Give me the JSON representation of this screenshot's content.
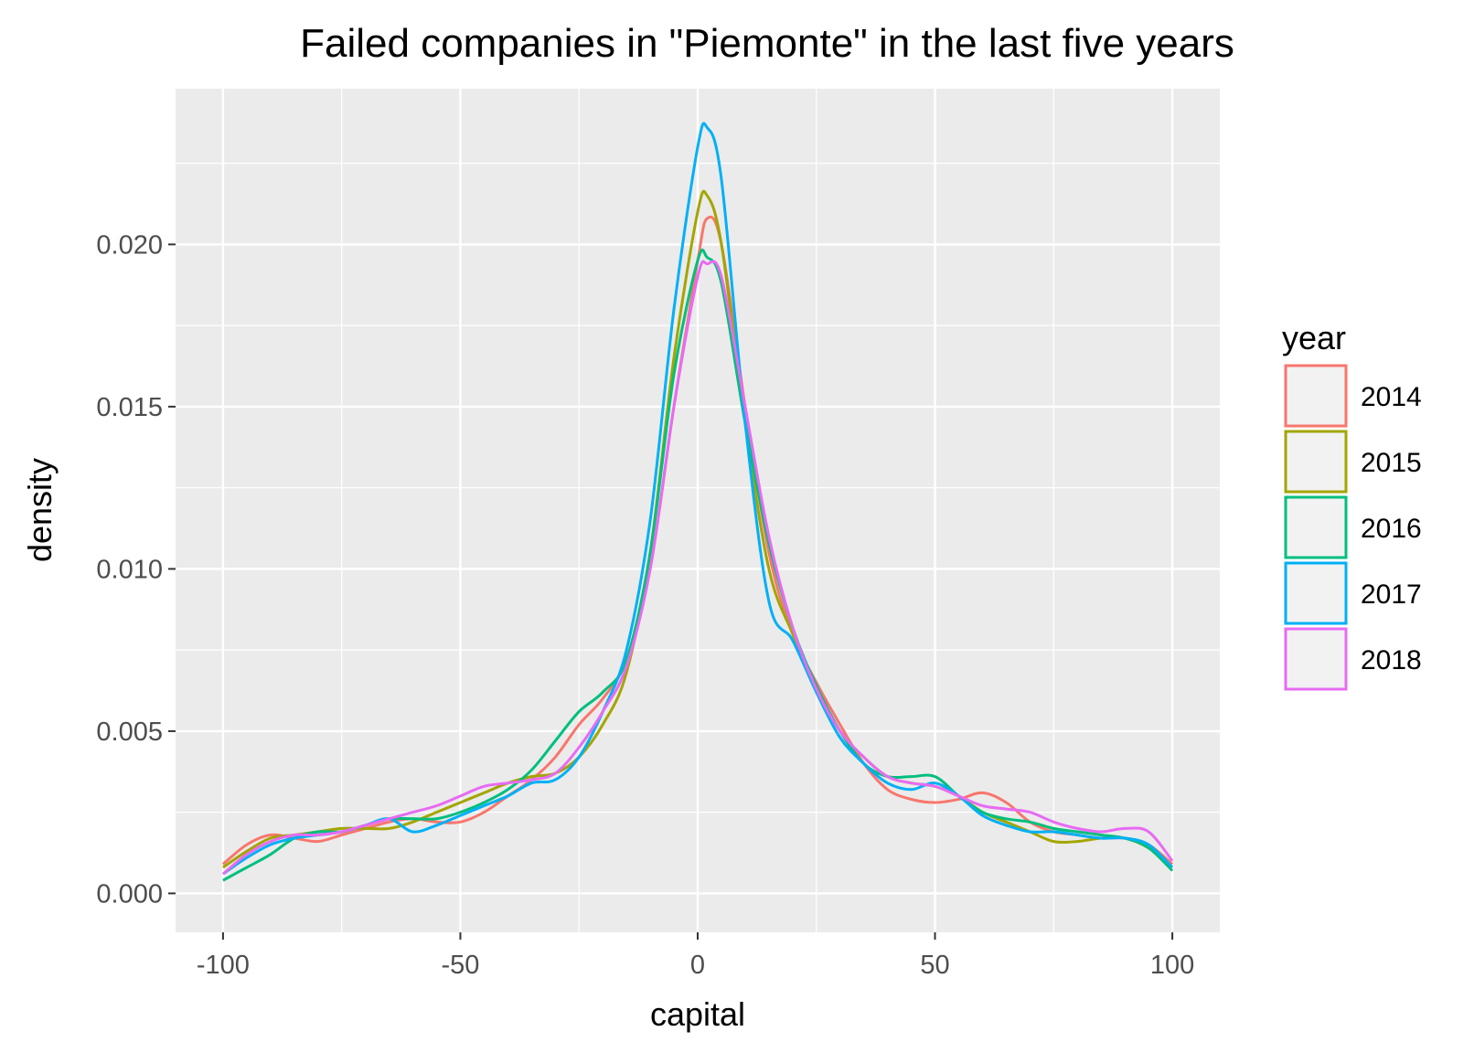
{
  "chart_data": {
    "type": "line",
    "title": "Failed companies in \"Piemonte\" in the last five years",
    "xlabel": "capital",
    "ylabel": "density",
    "xlim": [
      -110,
      110
    ],
    "ylim": [
      -0.0012,
      0.0248
    ],
    "x_ticks": [
      -100,
      -50,
      0,
      50,
      100
    ],
    "x_tick_labels": [
      "-100",
      "-50",
      "0",
      "50",
      "100"
    ],
    "y_ticks": [
      0.0,
      0.005,
      0.01,
      0.015,
      0.02
    ],
    "y_tick_labels": [
      "0.000",
      "0.005",
      "0.010",
      "0.015",
      "0.020"
    ],
    "grid": true,
    "background": "#ebebeb",
    "legend": {
      "title": "year",
      "placement": "right"
    },
    "x": [
      -100,
      -95,
      -90,
      -85,
      -80,
      -75,
      -70,
      -65,
      -60,
      -55,
      -50,
      -45,
      -40,
      -35,
      -30,
      -25,
      -20,
      -15,
      -10,
      -5,
      0,
      2,
      5,
      10,
      15,
      20,
      25,
      30,
      35,
      40,
      45,
      50,
      55,
      60,
      65,
      70,
      75,
      80,
      85,
      90,
      95,
      100
    ],
    "series": [
      {
        "name": "2014",
        "color": "#F8766D",
        "values": [
          0.0009,
          0.0015,
          0.0018,
          0.0017,
          0.0016,
          0.0018,
          0.002,
          0.0022,
          0.0023,
          0.0022,
          0.0022,
          0.0025,
          0.003,
          0.0035,
          0.0042,
          0.0052,
          0.006,
          0.0072,
          0.01,
          0.015,
          0.0195,
          0.0208,
          0.02,
          0.015,
          0.0105,
          0.008,
          0.0065,
          0.0052,
          0.004,
          0.0032,
          0.0029,
          0.0028,
          0.0029,
          0.0031,
          0.0028,
          0.0022,
          0.0019,
          0.0018,
          0.0017,
          0.0017,
          0.0015,
          0.0009
        ]
      },
      {
        "name": "2015",
        "color": "#A3A500",
        "values": [
          0.0008,
          0.0013,
          0.0017,
          0.0018,
          0.0019,
          0.002,
          0.002,
          0.002,
          0.0022,
          0.0025,
          0.0028,
          0.0031,
          0.0034,
          0.0036,
          0.0037,
          0.0042,
          0.0052,
          0.0068,
          0.0105,
          0.0165,
          0.021,
          0.0215,
          0.02,
          0.0145,
          0.01,
          0.008,
          0.0063,
          0.005,
          0.0042,
          0.0036,
          0.0034,
          0.0033,
          0.003,
          0.0025,
          0.0022,
          0.0019,
          0.0016,
          0.0016,
          0.0017,
          0.0017,
          0.0014,
          0.0008
        ]
      },
      {
        "name": "2016",
        "color": "#00BF7D",
        "values": [
          0.0004,
          0.0008,
          0.0012,
          0.0017,
          0.0019,
          0.0019,
          0.0021,
          0.0023,
          0.0023,
          0.0023,
          0.0025,
          0.0028,
          0.0032,
          0.0038,
          0.0047,
          0.0056,
          0.0062,
          0.0072,
          0.0105,
          0.016,
          0.0195,
          0.0196,
          0.0188,
          0.0145,
          0.0108,
          0.0082,
          0.0064,
          0.005,
          0.004,
          0.0036,
          0.0036,
          0.0036,
          0.003,
          0.0025,
          0.0023,
          0.0022,
          0.002,
          0.0019,
          0.0018,
          0.0017,
          0.0014,
          0.0007
        ]
      },
      {
        "name": "2017",
        "color": "#00B0F6",
        "values": [
          0.0006,
          0.0011,
          0.0015,
          0.0017,
          0.0018,
          0.0019,
          0.0021,
          0.0023,
          0.0019,
          0.0021,
          0.0024,
          0.0027,
          0.003,
          0.0034,
          0.0035,
          0.0042,
          0.0056,
          0.0075,
          0.0115,
          0.018,
          0.023,
          0.0236,
          0.022,
          0.0145,
          0.009,
          0.0078,
          0.0062,
          0.0048,
          0.004,
          0.0034,
          0.0032,
          0.0034,
          0.003,
          0.0024,
          0.0021,
          0.0019,
          0.0019,
          0.0018,
          0.0017,
          0.0017,
          0.0015,
          0.0008
        ]
      },
      {
        "name": "2018",
        "color": "#E76BF3",
        "values": [
          0.0006,
          0.0012,
          0.0016,
          0.0018,
          0.0018,
          0.0019,
          0.0021,
          0.0023,
          0.0025,
          0.0027,
          0.003,
          0.0033,
          0.0034,
          0.0035,
          0.0037,
          0.0045,
          0.0056,
          0.007,
          0.01,
          0.015,
          0.019,
          0.0194,
          0.019,
          0.015,
          0.011,
          0.0082,
          0.0063,
          0.005,
          0.0042,
          0.0036,
          0.0034,
          0.0033,
          0.003,
          0.0027,
          0.0026,
          0.0025,
          0.0022,
          0.002,
          0.0019,
          0.002,
          0.0019,
          0.001
        ]
      }
    ]
  }
}
